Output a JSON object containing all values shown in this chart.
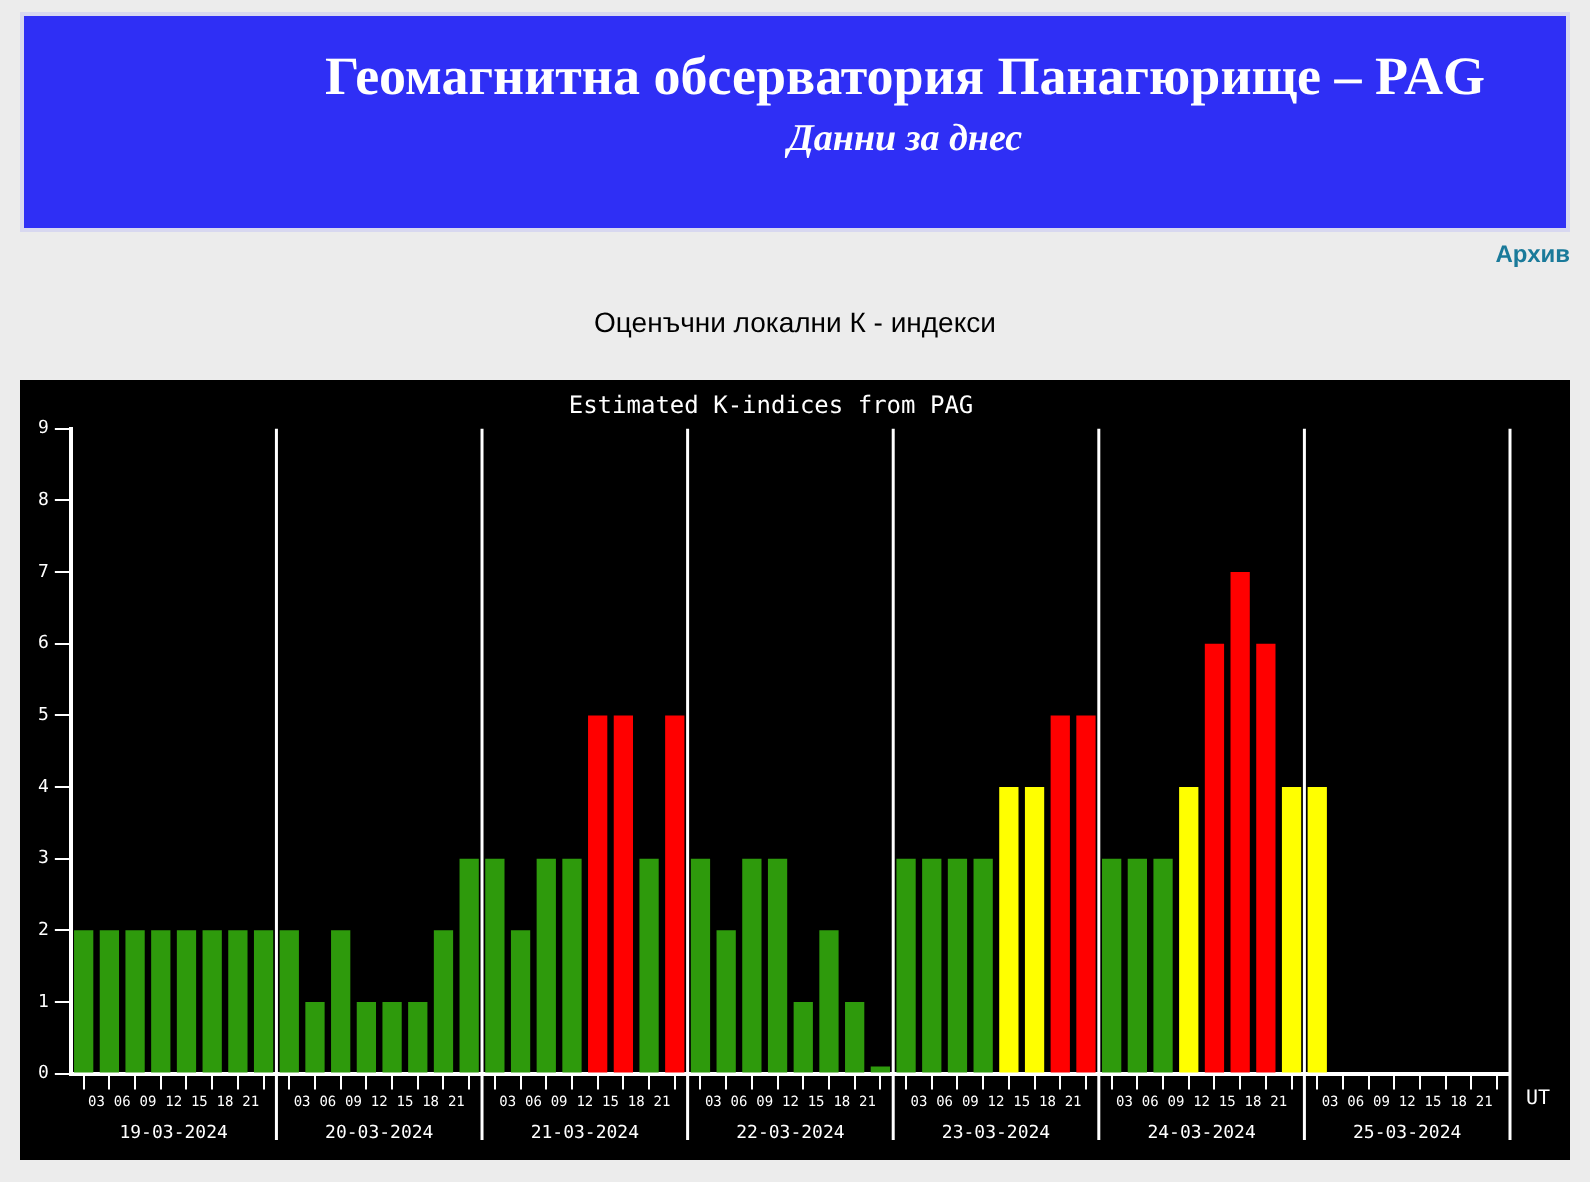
{
  "chart_data": {
    "type": "bar",
    "title": "Estimated K-indices from PAG",
    "xlabel": "UT",
    "annotations": [
      "Геомагнитна обсерватория Панагюрище – PAG",
      "Данни за днес",
      "Архив",
      "Оценъчни локални К - индекси"
    ],
    "x": [
      "2024-03-19T01:30",
      "2024-03-19T04:30",
      "2024-03-19T07:30",
      "2024-03-19T10:30",
      "2024-03-19T13:30",
      "2024-03-19T16:30",
      "2024-03-19T19:30",
      "2024-03-19T22:30",
      "2024-03-20T01:30",
      "2024-03-20T04:30",
      "2024-03-20T07:30",
      "2024-03-20T10:30",
      "2024-03-20T13:30",
      "2024-03-20T16:30",
      "2024-03-20T19:30",
      "2024-03-20T22:30",
      "2024-03-21T01:30",
      "2024-03-21T04:30",
      "2024-03-21T07:30",
      "2024-03-21T10:30",
      "2024-03-21T13:30",
      "2024-03-21T16:30",
      "2024-03-21T19:30",
      "2024-03-21T22:30",
      "2024-03-22T01:30",
      "2024-03-22T04:30",
      "2024-03-22T07:30",
      "2024-03-22T10:30",
      "2024-03-22T13:30",
      "2024-03-22T16:30",
      "2024-03-22T19:30",
      "2024-03-22T22:30",
      "2024-03-23T01:30",
      "2024-03-23T04:30",
      "2024-03-23T07:30",
      "2024-03-23T10:30",
      "2024-03-23T13:30",
      "2024-03-23T16:30",
      "2024-03-23T19:30",
      "2024-03-23T22:30",
      "2024-03-24T01:30",
      "2024-03-24T04:30",
      "2024-03-24T07:30",
      "2024-03-24T10:30",
      "2024-03-24T13:30",
      "2024-03-24T16:30",
      "2024-03-24T19:30",
      "2024-03-24T22:30",
      "2024-03-25T01:30"
    ],
    "values": [
      2,
      2,
      2,
      2,
      2,
      2,
      2,
      2,
      2,
      1,
      2,
      1,
      1,
      1,
      2,
      3,
      3,
      2,
      3,
      3,
      5,
      5,
      3,
      5,
      3,
      2,
      3,
      3,
      1,
      2,
      1,
      0.1,
      3,
      3,
      3,
      3,
      4,
      4,
      5,
      5,
      3,
      3,
      3,
      4,
      6,
      7,
      6,
      4,
      4
    ],
    "colors": [
      "#2e9a0c",
      "#2e9a0c",
      "#2e9a0c",
      "#2e9a0c",
      "#2e9a0c",
      "#2e9a0c",
      "#2e9a0c",
      "#2e9a0c",
      "#2e9a0c",
      "#2e9a0c",
      "#2e9a0c",
      "#2e9a0c",
      "#2e9a0c",
      "#2e9a0c",
      "#2e9a0c",
      "#2e9a0c",
      "#2e9a0c",
      "#2e9a0c",
      "#2e9a0c",
      "#2e9a0c",
      "#ff0000",
      "#ff0000",
      "#2e9a0c",
      "#ff0000",
      "#2e9a0c",
      "#2e9a0c",
      "#2e9a0c",
      "#2e9a0c",
      "#2e9a0c",
      "#2e9a0c",
      "#2e9a0c",
      "#2e9a0c",
      "#2e9a0c",
      "#2e9a0c",
      "#2e9a0c",
      "#2e9a0c",
      "#ffff00",
      "#ffff00",
      "#ff0000",
      "#ff0000",
      "#2e9a0c",
      "#2e9a0c",
      "#2e9a0c",
      "#ffff00",
      "#ff0000",
      "#ff0000",
      "#ff0000",
      "#ffff00",
      "#ffff00"
    ],
    "xlim": [
      "2024-03-19T00:00",
      "2024-03-26T00:00"
    ],
    "xticks": [
      {
        "value": "2024-03-19T00:00",
        "label": null
      },
      {
        "value": "2024-03-19T03:00",
        "label": "03"
      },
      {
        "value": "2024-03-19T06:00",
        "label": "06"
      },
      {
        "value": "2024-03-19T09:00",
        "label": "09"
      },
      {
        "value": "2024-03-19T12:00",
        "label": "12"
      },
      {
        "value": "2024-03-19T15:00",
        "label": "15"
      },
      {
        "value": "2024-03-19T18:00",
        "label": "18"
      },
      {
        "value": "2024-03-19T21:00",
        "label": "21"
      },
      {
        "value": "2024-03-20T00:00",
        "label": null
      },
      {
        "value": "2024-03-20T03:00",
        "label": "03"
      },
      {
        "value": "2024-03-20T06:00",
        "label": "06"
      },
      {
        "value": "2024-03-20T09:00",
        "label": "09"
      },
      {
        "value": "2024-03-20T12:00",
        "label": "12"
      },
      {
        "value": "2024-03-20T15:00",
        "label": "15"
      },
      {
        "value": "2024-03-20T18:00",
        "label": "18"
      },
      {
        "value": "2024-03-20T21:00",
        "label": "21"
      },
      {
        "value": "2024-03-21T00:00",
        "label": null
      },
      {
        "value": "2024-03-21T03:00",
        "label": "03"
      },
      {
        "value": "2024-03-21T06:00",
        "label": "06"
      },
      {
        "value": "2024-03-21T09:00",
        "label": "09"
      },
      {
        "value": "2024-03-21T12:00",
        "label": "12"
      },
      {
        "value": "2024-03-21T15:00",
        "label": "15"
      },
      {
        "value": "2024-03-21T18:00",
        "label": "18"
      },
      {
        "value": "2024-03-21T21:00",
        "label": "21"
      },
      {
        "value": "2024-03-22T00:00",
        "label": null
      },
      {
        "value": "2024-03-22T03:00",
        "label": "03"
      },
      {
        "value": "2024-03-22T06:00",
        "label": "06"
      },
      {
        "value": "2024-03-22T09:00",
        "label": "09"
      },
      {
        "value": "2024-03-22T12:00",
        "label": "12"
      },
      {
        "value": "2024-03-22T15:00",
        "label": "15"
      },
      {
        "value": "2024-03-22T18:00",
        "label": "18"
      },
      {
        "value": "2024-03-22T21:00",
        "label": "21"
      },
      {
        "value": "2024-03-23T00:00",
        "label": null
      },
      {
        "value": "2024-03-23T03:00",
        "label": "03"
      },
      {
        "value": "2024-03-23T06:00",
        "label": "06"
      },
      {
        "value": "2024-03-23T09:00",
        "label": "09"
      },
      {
        "value": "2024-03-23T12:00",
        "label": "12"
      },
      {
        "value": "2024-03-23T15:00",
        "label": "15"
      },
      {
        "value": "2024-03-23T18:00",
        "label": "18"
      },
      {
        "value": "2024-03-23T21:00",
        "label": "21"
      },
      {
        "value": "2024-03-24T00:00",
        "label": null
      },
      {
        "value": "2024-03-24T03:00",
        "label": "03"
      },
      {
        "value": "2024-03-24T06:00",
        "label": "06"
      },
      {
        "value": "2024-03-24T09:00",
        "label": "09"
      },
      {
        "value": "2024-03-24T12:00",
        "label": "12"
      },
      {
        "value": "2024-03-24T15:00",
        "label": "15"
      },
      {
        "value": "2024-03-24T18:00",
        "label": "18"
      },
      {
        "value": "2024-03-24T21:00",
        "label": "21"
      },
      {
        "value": "2024-03-25T00:00",
        "label": null
      },
      {
        "value": "2024-03-25T03:00",
        "label": "03"
      },
      {
        "value": "2024-03-25T06:00",
        "label": "06"
      },
      {
        "value": "2024-03-25T09:00",
        "label": "09"
      },
      {
        "value": "2024-03-25T12:00",
        "label": "12"
      },
      {
        "value": "2024-03-25T15:00",
        "label": "15"
      },
      {
        "value": "2024-03-25T18:00",
        "label": "18"
      },
      {
        "value": "2024-03-25T21:00",
        "label": "21"
      },
      {
        "value": "2024-03-26T00:00",
        "label": null
      }
    ],
    "x2lim": [
      "2024-03-19T00:00",
      "2024-03-26T00:00"
    ],
    "x2ticks": [
      {
        "value": "2024-03-19T12:00",
        "label": "19-03-2024"
      },
      {
        "value": "2024-03-20T12:00",
        "label": "20-03-2024"
      },
      {
        "value": "2024-03-21T12:00",
        "label": "21-03-2024"
      },
      {
        "value": "2024-03-22T12:00",
        "label": "22-03-2024"
      },
      {
        "value": "2024-03-23T12:00",
        "label": "23-03-2024"
      },
      {
        "value": "2024-03-24T12:00",
        "label": "24-03-2024"
      },
      {
        "value": "2024-03-25T12:00",
        "label": "25-03-2024"
      }
    ],
    "ylim": [
      0,
      9
    ],
    "yticks": [
      0,
      1,
      2,
      3,
      4,
      5,
      6,
      7,
      8,
      9
    ],
    "ref_lines": [
      {
        "axis": "x",
        "value": "2024-03-20T00:00",
        "color": "#ffffff"
      },
      {
        "axis": "x",
        "value": "2024-03-21T00:00",
        "color": "#ffffff"
      },
      {
        "axis": "x",
        "value": "2024-03-22T00:00",
        "color": "#ffffff"
      },
      {
        "axis": "x",
        "value": "2024-03-23T00:00",
        "color": "#ffffff"
      },
      {
        "axis": "x",
        "value": "2024-03-24T00:00",
        "color": "#ffffff"
      },
      {
        "axis": "x",
        "value": "2024-03-25T00:00",
        "color": "#ffffff"
      }
    ],
    "grid": false,
    "legend": false
  }
}
